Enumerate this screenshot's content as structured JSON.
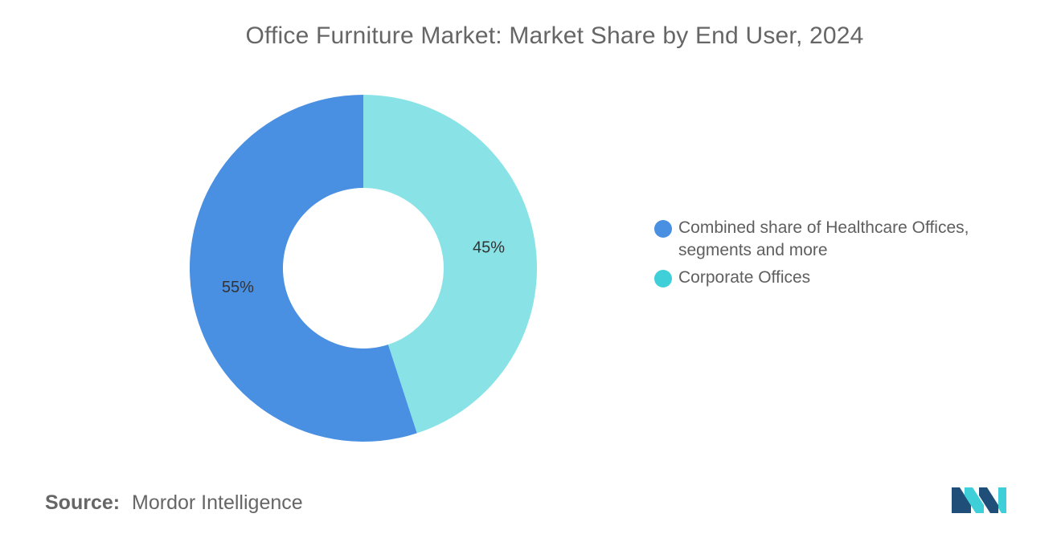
{
  "chart_data": {
    "type": "pie",
    "variant": "donut",
    "title": "Office Furniture Market: Market Share by End User, 2024",
    "slices": [
      {
        "label": "Corporate Offices",
        "value": 45,
        "display": "45%",
        "color": "#89E3E6",
        "legend_color": "#3FCFD8"
      },
      {
        "label": "Combined share of Healthcare Offices, segments and more",
        "value": 55,
        "display": "55%",
        "color": "#4A90E2",
        "legend_color": "#4A90E2"
      }
    ],
    "legend": {
      "placement": "right",
      "items": [
        {
          "label": "Combined share of Healthcare Offices, segments and more",
          "color": "#4A90E2"
        },
        {
          "label": "Corporate Offices",
          "color": "#3FCFD8"
        }
      ]
    }
  },
  "source": {
    "label": "Source:",
    "text": "Mordor Intelligence"
  },
  "logo": {
    "icon": "mordor-intelligence-logo-icon",
    "colors": [
      "#1F4E79",
      "#3FCFD8"
    ]
  }
}
